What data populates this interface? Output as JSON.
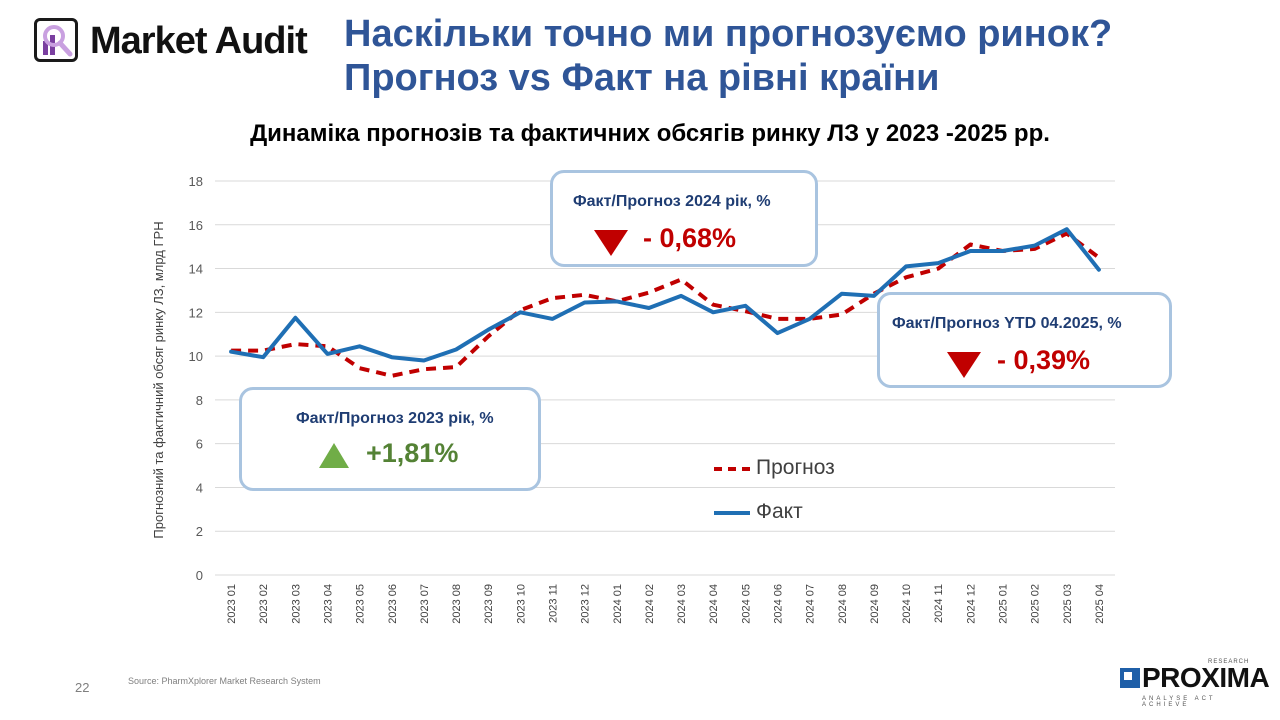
{
  "header": {
    "logo_text": "Market Audit",
    "title_line1": "Наскільки точно ми прогнозуємо ринок?",
    "title_line2": "Прогноз vs Факт на рівні країни"
  },
  "callouts": [
    {
      "title": "Факт/Прогноз 2023 рік, %",
      "value": "+1,81%",
      "direction": "up",
      "color": "#548235"
    },
    {
      "title": "Факт/Прогноз 2024 рік, %",
      "value": "- 0,68%",
      "direction": "down",
      "color": "#c00000"
    },
    {
      "title": "Факт/Прогноз YTD 04.2025, %",
      "value": "- 0,39%",
      "direction": "down",
      "color": "#c00000"
    }
  ],
  "footer": {
    "page_number": "22",
    "source": "Source: PharmXplorer Market Research System",
    "brand": "PROXIMA",
    "brand_small": "RESEARCH",
    "brand_tagline": "ANALYSE ACT ACHIEVE"
  },
  "colors": {
    "forecast": "#c00000",
    "actual": "#1f6fb4",
    "grid": "#d9d9d9",
    "title": "#2f5597"
  },
  "chart_data": {
    "type": "line",
    "title": "Динаміка прогнозів та фактичних обсягів ринку ЛЗ у 2023 -2025 рр.",
    "xlabel": "",
    "ylabel": "Прогнозний та фактичний обсяг ринку ЛЗ, млрд ГРН",
    "ylim": [
      0,
      18
    ],
    "yticks": [
      0,
      2,
      4,
      6,
      8,
      10,
      12,
      14,
      16,
      18
    ],
    "grid": true,
    "legend_position": "inside-lower-right",
    "categories": [
      "2023 01",
      "2023 02",
      "2023 03",
      "2023 04",
      "2023 05",
      "2023 06",
      "2023 07",
      "2023 08",
      "2023 09",
      "2023 10",
      "2023 11",
      "2023 12",
      "2024 01",
      "2024 02",
      "2024 03",
      "2024 04",
      "2024 05",
      "2024 06",
      "2024 07",
      "2024 08",
      "2024 09",
      "2024 10",
      "2024 11",
      "2024 12",
      "2025 01",
      "2025 02",
      "2025 03",
      "2025 04"
    ],
    "series": [
      {
        "name": "Прогноз",
        "style": "dashed",
        "color": "#c00000",
        "values": [
          10.25,
          10.25,
          10.55,
          10.45,
          9.45,
          9.1,
          9.4,
          9.5,
          10.9,
          12.1,
          12.65,
          12.8,
          12.5,
          12.9,
          13.5,
          12.35,
          12.05,
          11.7,
          11.7,
          11.9,
          12.85,
          13.6,
          14.0,
          15.1,
          14.8,
          14.9,
          15.6,
          14.5
        ]
      },
      {
        "name": "Факт",
        "style": "solid",
        "color": "#1f6fb4",
        "values": [
          10.2,
          9.95,
          11.75,
          10.1,
          10.45,
          9.95,
          9.8,
          10.3,
          11.2,
          12.0,
          11.7,
          12.45,
          12.5,
          12.2,
          12.75,
          12.0,
          12.3,
          11.05,
          11.7,
          12.85,
          12.75,
          14.1,
          14.25,
          14.8,
          14.8,
          15.05,
          15.8,
          13.95
        ]
      }
    ]
  }
}
